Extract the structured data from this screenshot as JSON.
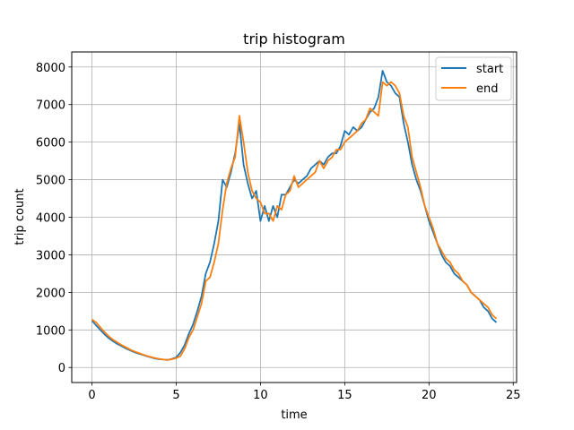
{
  "chart_data": {
    "type": "line",
    "title": "trip histogram",
    "xlabel": "time",
    "ylabel": "trip count",
    "xlim": [
      -1.2,
      25.2
    ],
    "ylim": [
      -400,
      8400
    ],
    "xticks": [
      0,
      5,
      10,
      15,
      20,
      25
    ],
    "yticks": [
      0,
      1000,
      2000,
      3000,
      4000,
      5000,
      6000,
      7000,
      8000
    ],
    "grid": true,
    "legend_position": "top-right",
    "series": [
      {
        "name": "start",
        "color": "#1f77b4",
        "x": [
          0,
          0.25,
          0.5,
          0.75,
          1,
          1.25,
          1.5,
          1.75,
          2,
          2.25,
          2.5,
          2.75,
          3,
          3.25,
          3.5,
          3.75,
          4,
          4.25,
          4.5,
          4.75,
          5,
          5.25,
          5.5,
          5.75,
          6,
          6.25,
          6.5,
          6.75,
          7,
          7.25,
          7.5,
          7.75,
          8,
          8.25,
          8.5,
          8.75,
          9,
          9.25,
          9.5,
          9.75,
          10,
          10.25,
          10.5,
          10.75,
          11,
          11.25,
          11.5,
          11.75,
          12,
          12.25,
          12.5,
          12.75,
          13,
          13.25,
          13.5,
          13.75,
          14,
          14.25,
          14.5,
          14.75,
          15,
          15.25,
          15.5,
          15.75,
          16,
          16.25,
          16.5,
          16.75,
          17,
          17.25,
          17.5,
          17.75,
          18,
          18.25,
          18.5,
          18.75,
          19,
          19.25,
          19.5,
          19.75,
          20,
          20.25,
          20.5,
          20.75,
          21,
          21.25,
          21.5,
          21.75,
          22,
          22.25,
          22.5,
          22.75,
          23,
          23.25,
          23.5,
          23.75,
          24
        ],
        "y": [
          1250,
          1120,
          1000,
          880,
          780,
          700,
          630,
          570,
          510,
          460,
          410,
          370,
          340,
          300,
          270,
          240,
          220,
          210,
          200,
          230,
          270,
          400,
          600,
          900,
          1150,
          1500,
          1900,
          2500,
          2800,
          3300,
          3900,
          5000,
          4800,
          5200,
          5700,
          6500,
          5400,
          4900,
          4500,
          4700,
          3900,
          4300,
          3900,
          4300,
          4000,
          4600,
          4600,
          4800,
          5000,
          4900,
          5000,
          5100,
          5300,
          5400,
          5500,
          5400,
          5600,
          5700,
          5700,
          5900,
          6300,
          6200,
          6400,
          6300,
          6400,
          6600,
          6800,
          6900,
          7200,
          7900,
          7600,
          7500,
          7300,
          7200,
          6500,
          6000,
          5400,
          5000,
          4700,
          4300,
          3900,
          3600,
          3300,
          3000,
          2800,
          2700,
          2500,
          2400,
          2300,
          2200,
          2000,
          1900,
          1800,
          1600,
          1500,
          1300,
          1200
        ]
      },
      {
        "name": "end",
        "color": "#ff7f0e",
        "x": [
          0,
          0.25,
          0.5,
          0.75,
          1,
          1.25,
          1.5,
          1.75,
          2,
          2.25,
          2.5,
          2.75,
          3,
          3.25,
          3.5,
          3.75,
          4,
          4.25,
          4.5,
          4.75,
          5,
          5.25,
          5.5,
          5.75,
          6,
          6.25,
          6.5,
          6.75,
          7,
          7.25,
          7.5,
          7.75,
          8,
          8.25,
          8.5,
          8.75,
          9,
          9.25,
          9.5,
          9.75,
          10,
          10.25,
          10.5,
          10.75,
          11,
          11.25,
          11.5,
          11.75,
          12,
          12.25,
          12.5,
          12.75,
          13,
          13.25,
          13.5,
          13.75,
          14,
          14.25,
          14.5,
          14.75,
          15,
          15.25,
          15.5,
          15.75,
          16,
          16.25,
          16.5,
          16.75,
          17,
          17.25,
          17.5,
          17.75,
          18,
          18.25,
          18.5,
          18.75,
          19,
          19.25,
          19.5,
          19.75,
          20,
          20.25,
          20.5,
          20.75,
          21,
          21.25,
          21.5,
          21.75,
          22,
          22.25,
          22.5,
          22.75,
          23,
          23.25,
          23.5,
          23.75,
          24
        ],
        "y": [
          1280,
          1200,
          1070,
          940,
          830,
          740,
          670,
          600,
          540,
          480,
          430,
          390,
          350,
          310,
          280,
          250,
          230,
          210,
          200,
          220,
          250,
          300,
          500,
          800,
          1000,
          1350,
          1700,
          2300,
          2400,
          2800,
          3300,
          4200,
          4900,
          5300,
          5600,
          6700,
          6000,
          5200,
          4700,
          4500,
          4400,
          4100,
          4100,
          3900,
          4300,
          4200,
          4600,
          4700,
          5100,
          4800,
          4900,
          5000,
          5100,
          5200,
          5500,
          5300,
          5500,
          5600,
          5800,
          5800,
          6000,
          6100,
          6200,
          6300,
          6500,
          6600,
          6900,
          6800,
          6700,
          7600,
          7500,
          7600,
          7500,
          7300,
          6700,
          6400,
          5600,
          5200,
          4800,
          4300,
          4000,
          3700,
          3300,
          3100,
          2900,
          2800,
          2600,
          2500,
          2300,
          2200,
          2000,
          1900,
          1800,
          1700,
          1600,
          1400,
          1300
        ]
      }
    ]
  }
}
